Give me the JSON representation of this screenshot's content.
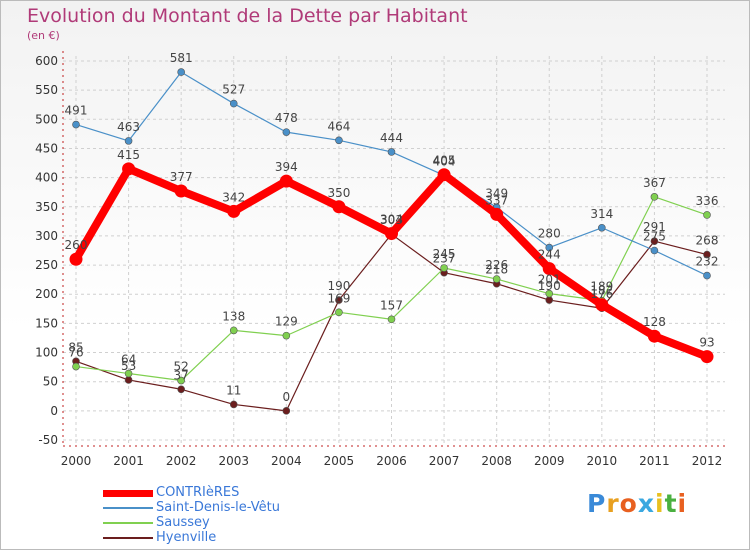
{
  "chart_data": {
    "type": "line",
    "title": "Evolution du Montant de la Dette par Habitant",
    "subtitle": "(en €)",
    "x": [
      "2000",
      "2001",
      "2002",
      "2003",
      "2004",
      "2005",
      "2006",
      "2007",
      "2008",
      "2009",
      "2010",
      "2011",
      "2012"
    ],
    "ylim": [
      -50,
      600
    ],
    "yticks": [
      -50,
      0,
      50,
      100,
      150,
      200,
      250,
      300,
      350,
      400,
      450,
      500,
      550,
      600
    ],
    "grid": true,
    "legend_position": "bottom-left",
    "series": [
      {
        "name": "CONTRIèRES",
        "color": "#ff0000",
        "values": [
          260,
          415,
          377,
          342,
          394,
          350,
          304,
          405,
          337,
          244,
          182,
          128,
          93
        ]
      },
      {
        "name": "Saint-Denis-le-Vêtu",
        "color": "#4a90c8",
        "values": [
          491,
          463,
          581,
          527,
          478,
          464,
          444,
          404,
          349,
          280,
          314,
          275,
          232
        ]
      },
      {
        "name": "Saussey",
        "color": "#80d050",
        "values": [
          76,
          64,
          52,
          138,
          129,
          169,
          157,
          245,
          226,
          201,
          189,
          367,
          336
        ]
      },
      {
        "name": "Hyenville",
        "color": "#6b1e1e",
        "values": [
          85,
          53,
          37,
          11,
          0,
          190,
          303,
          237,
          218,
          190,
          176,
          291,
          268
        ]
      }
    ]
  },
  "logo": {
    "letters": [
      "P",
      "r",
      "o",
      "x",
      "i",
      "t",
      "i"
    ],
    "colors": [
      "#3a8ad8",
      "#e8a020",
      "#e86020",
      "#3aa8e0",
      "#e8c020",
      "#4ab040",
      "#e86020"
    ]
  }
}
